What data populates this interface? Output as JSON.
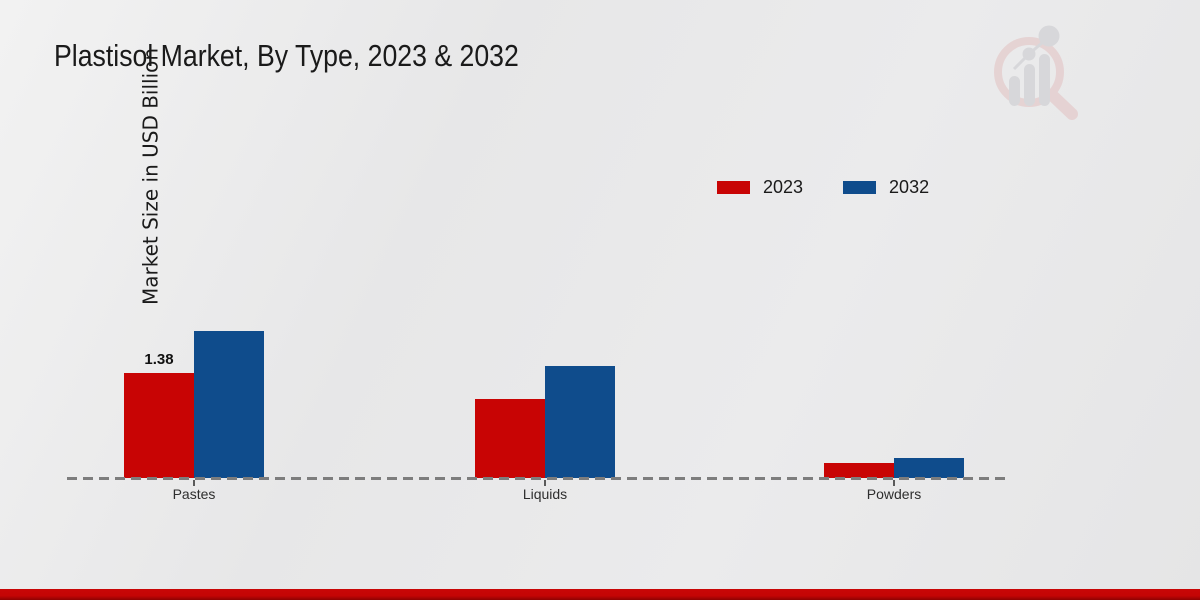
{
  "header": {
    "title": "Plastisol Market, By Type, 2023 & 2032"
  },
  "y_axis": {
    "label": "Market Size in USD Billion"
  },
  "chart_data": {
    "type": "bar",
    "title": "Plastisol Market, By Type, 2023 & 2032",
    "ylabel": "Market Size in USD Billion",
    "units": "USD Billion",
    "categories": [
      "Pastes",
      "Liquids",
      "Powders"
    ],
    "series": [
      {
        "name": "2023",
        "color": "#c80404",
        "values": [
          1.38,
          1.04,
          0.2
        ]
      },
      {
        "name": "2032",
        "color": "#0f4c8c",
        "values": [
          1.93,
          1.47,
          0.26
        ]
      }
    ],
    "value_labels": [
      {
        "category": "Pastes",
        "series": "2023",
        "text": "1.38"
      }
    ],
    "ylim": [
      0,
      2.2
    ],
    "grid": false,
    "legend_position": "top-right",
    "x_baseline_style": "dashed"
  },
  "colors": {
    "series_2023": "#c80404",
    "series_2032": "#0f4c8c",
    "footer_bar": "#c40505",
    "baseline": "#7d7d7d"
  },
  "watermark": {
    "name": "market-research-future-logo"
  }
}
